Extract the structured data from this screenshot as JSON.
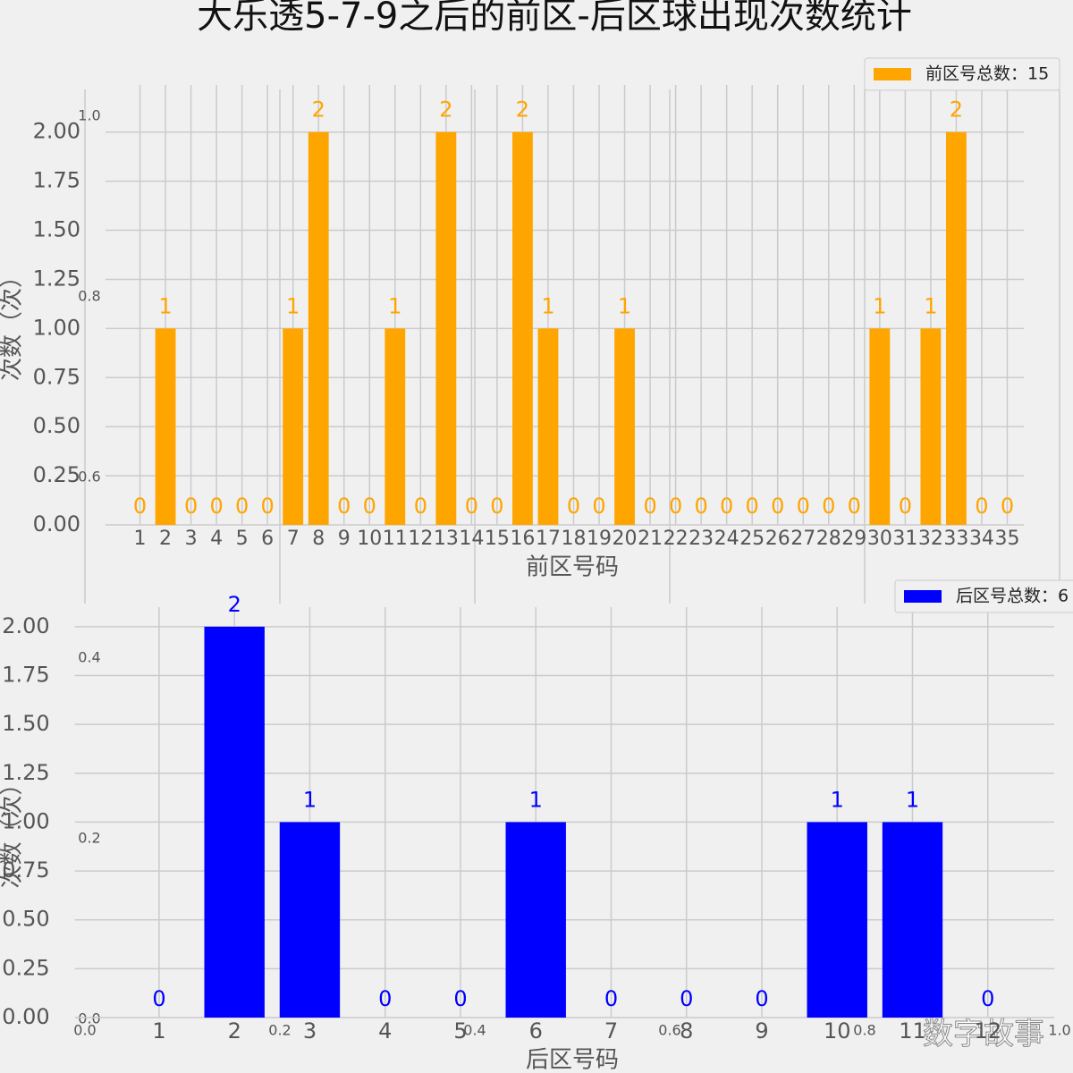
{
  "chart_data": [
    {
      "type": "bar",
      "title": "大乐透5-7-9之后的前区-后区球出现次数统计",
      "xlabel": "前区号码",
      "ylabel": "次数（次）",
      "x": [
        1,
        2,
        3,
        4,
        5,
        6,
        7,
        8,
        9,
        10,
        11,
        12,
        13,
        14,
        15,
        16,
        17,
        18,
        19,
        20,
        21,
        22,
        23,
        24,
        25,
        26,
        27,
        28,
        29,
        30,
        31,
        32,
        33,
        34,
        35
      ],
      "series": [
        {
          "name": "前区号总数：15",
          "color": "#ffa500",
          "values": [
            0,
            1,
            0,
            0,
            0,
            0,
            1,
            2,
            0,
            0,
            1,
            0,
            2,
            0,
            0,
            2,
            1,
            0,
            0,
            1,
            0,
            0,
            0,
            0,
            0,
            0,
            0,
            0,
            0,
            1,
            0,
            1,
            2,
            0,
            0
          ]
        }
      ],
      "xlim": [
        0,
        36
      ],
      "ylim": [
        0,
        2.24
      ],
      "yticks": [
        {
          "value": 0,
          "label": "0.00"
        },
        {
          "value": 0.25,
          "label": "0.25"
        },
        {
          "value": 0.5,
          "label": "0.50"
        },
        {
          "value": 0.75,
          "label": "0.75"
        },
        {
          "value": 1,
          "label": "1.00"
        },
        {
          "value": 1.25,
          "label": "1.25"
        },
        {
          "value": 1.5,
          "label": "1.50"
        },
        {
          "value": 1.75,
          "label": "1.75"
        },
        {
          "value": 2,
          "label": "2.00"
        }
      ],
      "grid": true,
      "legend": "upper right"
    },
    {
      "type": "bar",
      "xlabel": "后区号码",
      "ylabel": "次数（次）",
      "x": [
        1,
        2,
        3,
        4,
        5,
        6,
        7,
        8,
        9,
        10,
        11,
        12
      ],
      "series": [
        {
          "name": "后区号总数：6",
          "color": "#0000ff",
          "values": [
            0,
            2,
            1,
            0,
            0,
            1,
            0,
            0,
            0,
            1,
            1,
            0
          ]
        }
      ],
      "xlim": [
        0,
        13
      ],
      "ylim": [
        0,
        2.1
      ],
      "yticks": [
        {
          "value": 0,
          "label": "0.00"
        },
        {
          "value": 0.25,
          "label": "0.25"
        },
        {
          "value": 0.5,
          "label": "0.50"
        },
        {
          "value": 0.75,
          "label": "0.75"
        },
        {
          "value": 1,
          "label": "1.00"
        },
        {
          "value": 1.25,
          "label": "1.25"
        },
        {
          "value": 1.5,
          "label": "1.50"
        },
        {
          "value": 1.75,
          "label": "1.75"
        },
        {
          "value": 2,
          "label": "2.00"
        }
      ],
      "grid": true,
      "legend": "upper right"
    },
    {
      "type": "axes",
      "annotation": "数字故事",
      "xlim": [
        0,
        1
      ],
      "ylim": [
        0,
        1
      ],
      "xticks": [
        {
          "value": 0,
          "label": "0.0"
        },
        {
          "value": 0.2,
          "label": "0.2"
        },
        {
          "value": 0.4,
          "label": "0.4"
        },
        {
          "value": 0.6,
          "label": "0.6"
        },
        {
          "value": 0.8,
          "label": "0.8"
        },
        {
          "value": 1,
          "label": "1.0"
        }
      ],
      "yticks": [
        {
          "value": 0,
          "label": "0.0"
        },
        {
          "value": 0.2,
          "label": "0.2"
        },
        {
          "value": 0.4,
          "label": "0.4"
        },
        {
          "value": 0.6,
          "label": "0.6"
        },
        {
          "value": 0.8,
          "label": "0.8"
        },
        {
          "value": 1,
          "label": "1.0"
        }
      ]
    }
  ]
}
